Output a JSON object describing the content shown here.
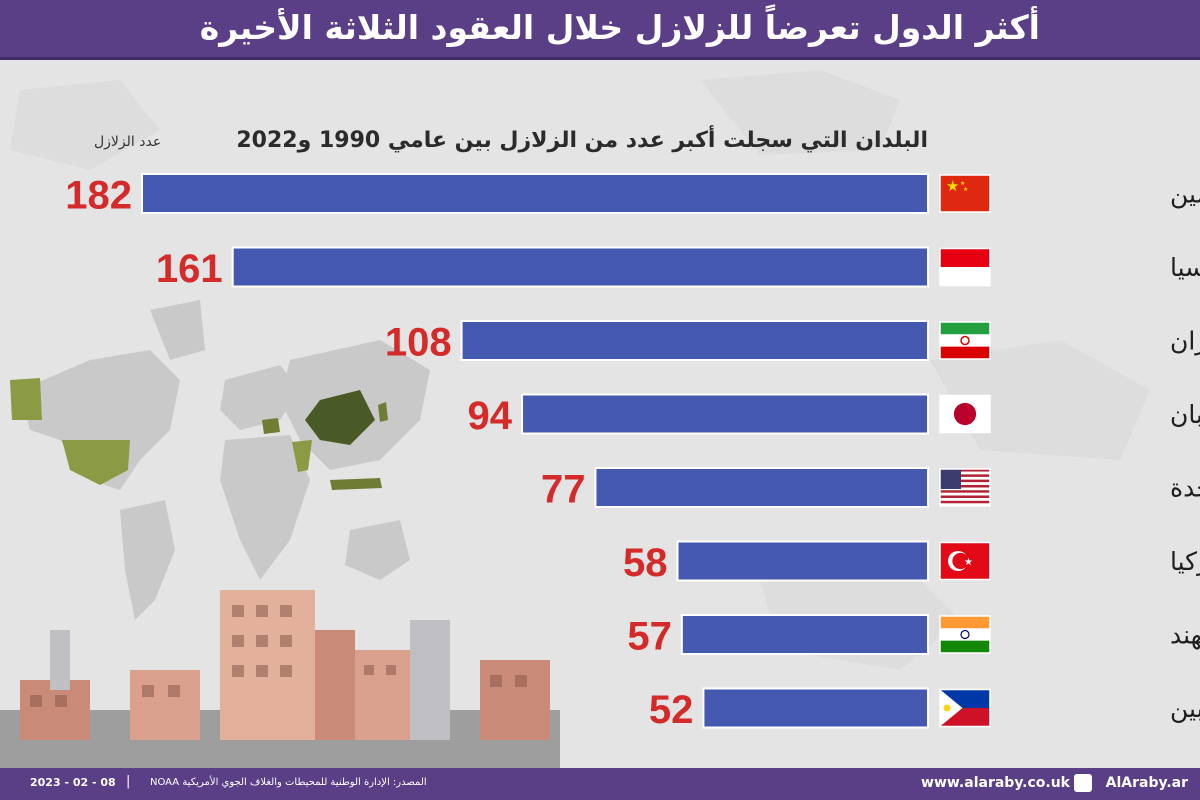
{
  "header": {
    "title": "أكثر الدول تعرضاً للزلازل خلال العقود الثلاثة الأخيرة"
  },
  "subtitle": "البلدان التي سجلت أكبر عدد من الزلازل بين عامي 1990 و2022",
  "count_label": "عدد الزلازل",
  "colors": {
    "header_bg": "#5a3f86",
    "bar": "#4659b0",
    "value": "#d42a2a",
    "map_highlight": "#4a5a26"
  },
  "chart_data": {
    "type": "bar",
    "orientation": "horizontal",
    "title": "أكثر الدول تعرضاً للزلازل خلال العقود الثلاثة الأخيرة",
    "subtitle": "البلدان التي سجلت أكبر عدد من الزلازل بين عامي 1990 و2022",
    "categories": [
      "الصين",
      "إندونيسيا",
      "إيران",
      "اليابان",
      "الولايات المتحدة",
      "تركيا",
      "الهند",
      "الفيليبين"
    ],
    "values": [
      182,
      161,
      108,
      94,
      77,
      58,
      57,
      52
    ],
    "flags": [
      "china-flag",
      "indonesia-flag",
      "iran-flag",
      "japan-flag",
      "usa-flag",
      "turkey-flag",
      "india-flag",
      "philippines-flag"
    ],
    "xlabel": "عدد الزلازل",
    "ylabel": "",
    "xlim": [
      0,
      182
    ],
    "grid": false,
    "legend": "none"
  },
  "footer": {
    "source": "المصدر: الإدارة الوطنية للمحيطات والغلاف الجوي الأمريكية NOAA",
    "date": "2023 - 02 - 08",
    "site": "www.alaraby.co.uk",
    "handle": "AlAraby.ar"
  }
}
